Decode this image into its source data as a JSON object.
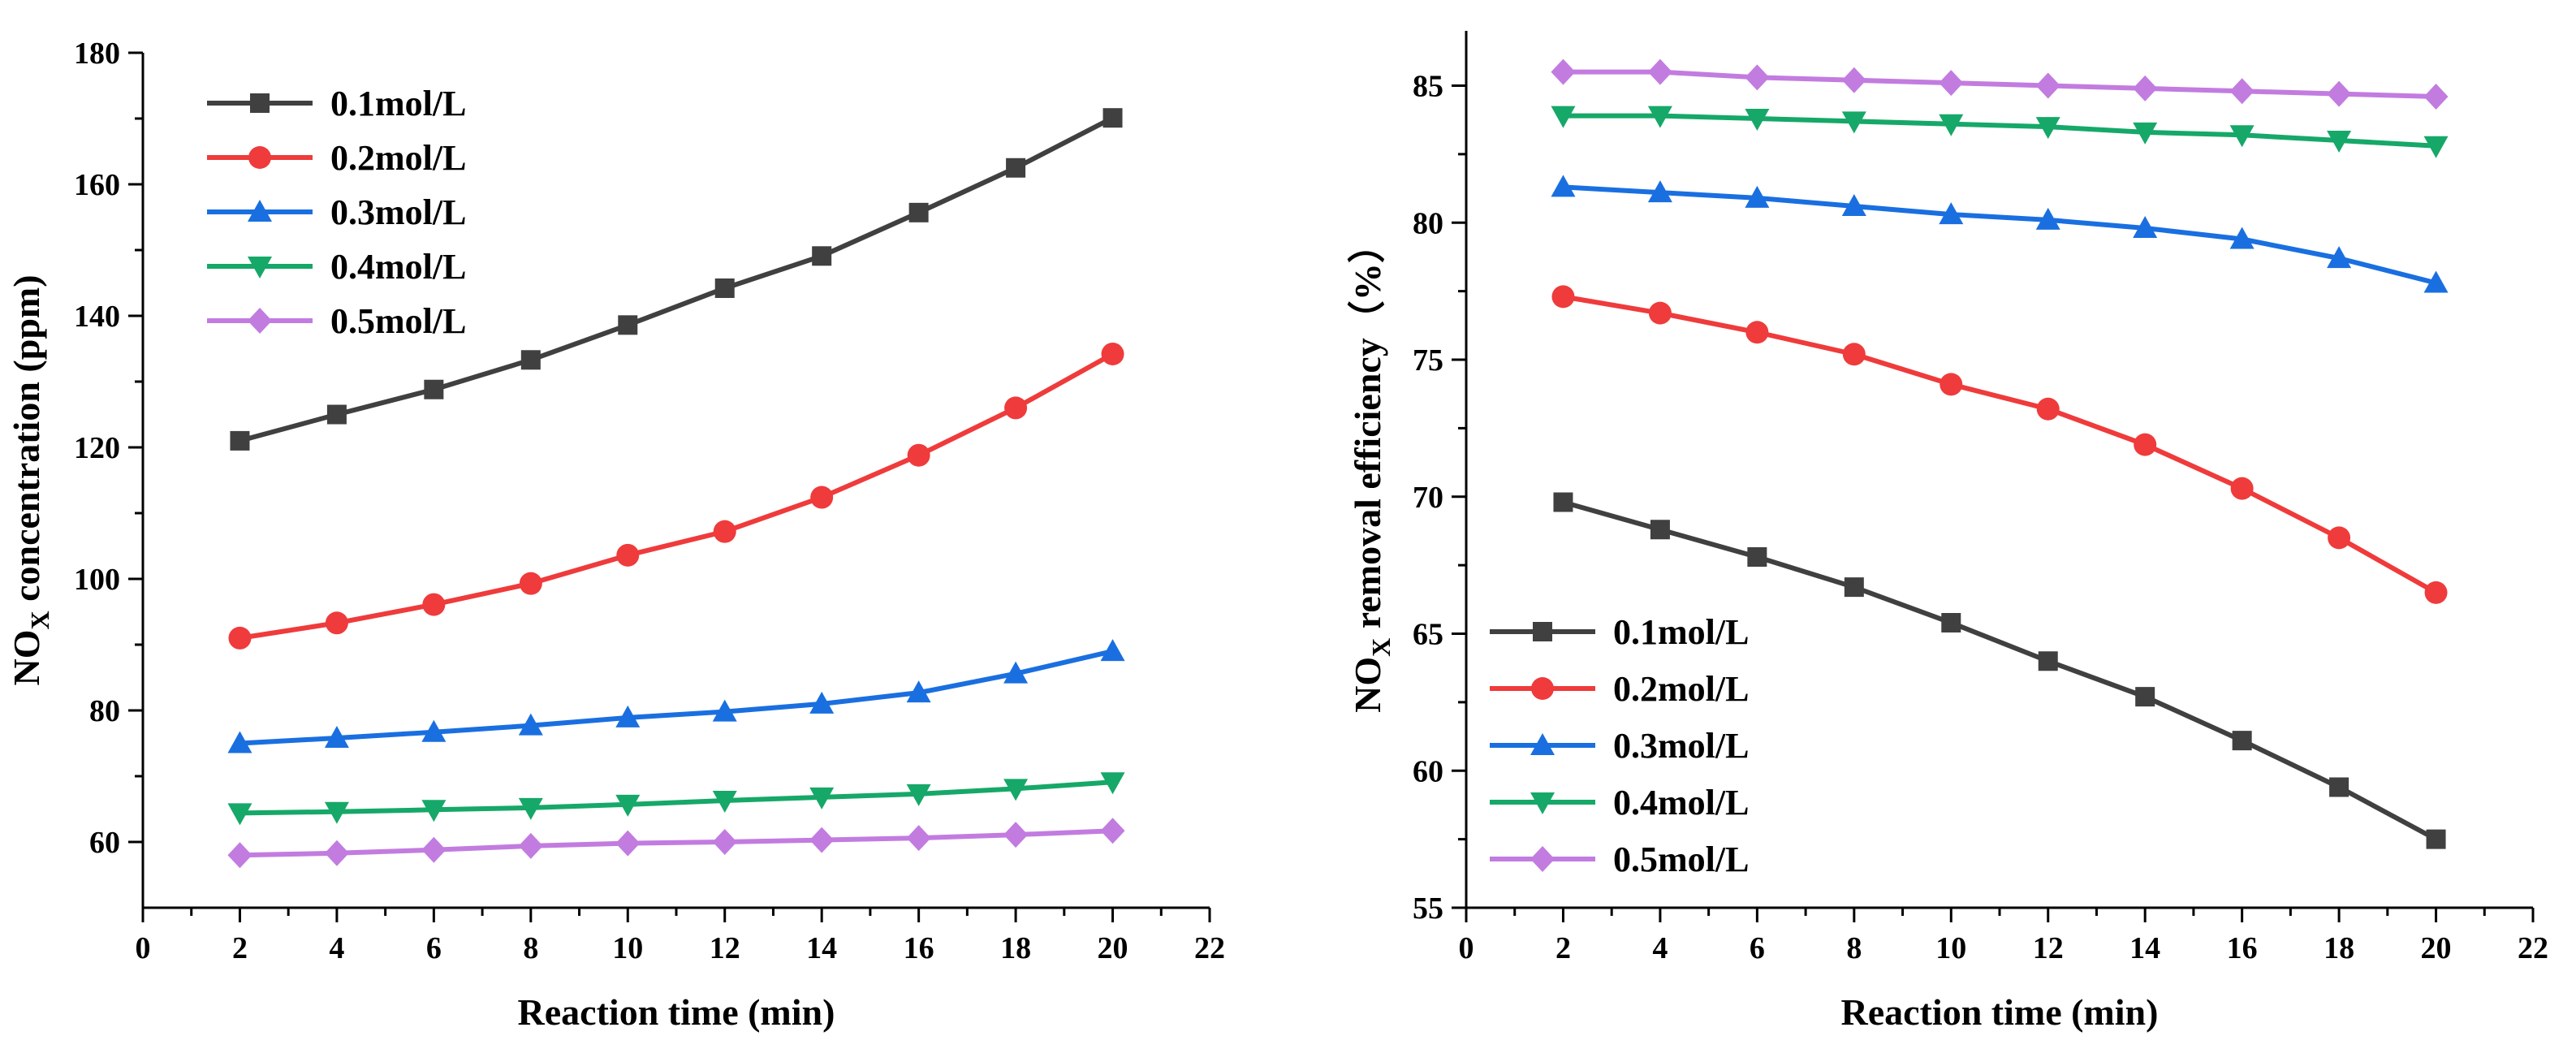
{
  "chart_data": [
    {
      "type": "line",
      "title": "",
      "xlabel": "Reaction time (min)",
      "ylabel": {
        "main": "NO",
        "sub": "X",
        "rest": " concentration (ppm)"
      },
      "xlim": [
        0,
        22
      ],
      "ylim": [
        50,
        180
      ],
      "xticks": [
        0,
        2,
        4,
        6,
        8,
        10,
        12,
        14,
        16,
        18,
        20,
        22
      ],
      "yticks": [
        60,
        80,
        100,
        120,
        140,
        160,
        180
      ],
      "legend_position": "top-left",
      "x": [
        2,
        4,
        6,
        8,
        10,
        12,
        14,
        16,
        18,
        20
      ],
      "series": [
        {
          "name": "0.1mol/L",
          "color": "#404040",
          "marker": "square",
          "values": [
            121.0,
            125.0,
            128.8,
            133.3,
            138.6,
            144.2,
            149.1,
            155.7,
            162.5,
            170.1
          ]
        },
        {
          "name": "0.2mol/L",
          "color": "#ef3b3b",
          "marker": "circle",
          "values": [
            91.0,
            93.3,
            96.1,
            99.3,
            103.6,
            107.2,
            112.4,
            118.8,
            126.0,
            134.2
          ]
        },
        {
          "name": "0.3mol/L",
          "color": "#1a6fe0",
          "marker": "triangle-up",
          "values": [
            75.0,
            75.8,
            76.7,
            77.7,
            78.9,
            79.8,
            81.0,
            82.7,
            85.6,
            89.0
          ]
        },
        {
          "name": "0.4mol/L",
          "color": "#16a868",
          "marker": "triangle-down",
          "values": [
            64.4,
            64.6,
            64.9,
            65.2,
            65.7,
            66.3,
            66.8,
            67.3,
            68.1,
            69.1
          ]
        },
        {
          "name": "0.5mol/L",
          "color": "#c27ce0",
          "marker": "diamond",
          "values": [
            58.0,
            58.3,
            58.8,
            59.4,
            59.8,
            60.0,
            60.3,
            60.6,
            61.1,
            61.7
          ]
        }
      ]
    },
    {
      "type": "line",
      "title": "",
      "xlabel": "Reaction time (min)",
      "ylabel": {
        "main": "NO",
        "sub": "X",
        "rest": " removal efficiency（%）"
      },
      "xlim": [
        0,
        22
      ],
      "ylim": [
        55,
        87
      ],
      "xticks": [
        0,
        2,
        4,
        6,
        8,
        10,
        12,
        14,
        16,
        18,
        20,
        22
      ],
      "yticks": [
        55,
        60,
        65,
        70,
        75,
        80,
        85
      ],
      "legend_position": "bottom-left",
      "x": [
        2,
        4,
        6,
        8,
        10,
        12,
        14,
        16,
        18,
        20
      ],
      "series": [
        {
          "name": "0.1mol/L",
          "color": "#404040",
          "marker": "square",
          "values": [
            69.8,
            68.8,
            67.8,
            66.7,
            65.4,
            64.0,
            62.7,
            61.1,
            59.4,
            57.5
          ]
        },
        {
          "name": "0.2mol/L",
          "color": "#ef3b3b",
          "marker": "circle",
          "values": [
            77.3,
            76.7,
            76.0,
            75.2,
            74.1,
            73.2,
            71.9,
            70.3,
            68.5,
            66.5
          ]
        },
        {
          "name": "0.3mol/L",
          "color": "#1a6fe0",
          "marker": "triangle-up",
          "values": [
            81.3,
            81.1,
            80.9,
            80.6,
            80.3,
            80.1,
            79.8,
            79.4,
            78.7,
            77.8
          ]
        },
        {
          "name": "0.4mol/L",
          "color": "#16a868",
          "marker": "triangle-down",
          "values": [
            83.9,
            83.9,
            83.8,
            83.7,
            83.6,
            83.5,
            83.3,
            83.2,
            83.0,
            82.8
          ]
        },
        {
          "name": "0.5mol/L",
          "color": "#c27ce0",
          "marker": "diamond",
          "values": [
            85.5,
            85.5,
            85.3,
            85.2,
            85.1,
            85.0,
            84.9,
            84.8,
            84.7,
            84.6
          ]
        }
      ]
    }
  ]
}
